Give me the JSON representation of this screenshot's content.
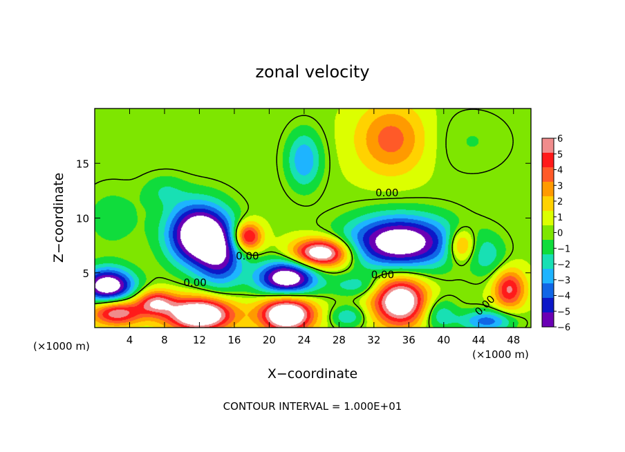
{
  "chart_data": {
    "type": "heatmap",
    "title": "zonal velocity",
    "xlabel": "X−coordinate",
    "ylabel": "Z−coordinate",
    "x_unit_left": "(×1000 m)",
    "x_unit_right": "(×1000 m)",
    "xlim": [
      0,
      50
    ],
    "ylim": [
      0,
      20
    ],
    "x_ticks": [
      4,
      8,
      12,
      16,
      20,
      24,
      28,
      32,
      36,
      40,
      44,
      48
    ],
    "y_ticks": [
      5,
      10,
      15
    ],
    "footer": "CONTOUR INTERVAL = 1.000E+01",
    "contour_labels": [
      "0.00",
      "0.00",
      "0.00",
      "0.00",
      "0.00"
    ],
    "colorbar": {
      "min": -6,
      "max": 6,
      "ticks": [
        "6",
        "5",
        "4",
        "3",
        "2",
        "1",
        "0",
        "−1",
        "−2",
        "−3",
        "−4",
        "−5",
        "−6"
      ],
      "colors": [
        "#f08c8c",
        "#ff1a1a",
        "#ff5a28",
        "#ff9a00",
        "#ffd200",
        "#dcff00",
        "#7ee600",
        "#10dc3c",
        "#18e0b4",
        "#1eb4ff",
        "#1066e6",
        "#0c18c8",
        "#6a00b4"
      ]
    },
    "background_value": 0.3,
    "features": [
      {
        "kind": "blob",
        "x": 12,
        "z": 8.5,
        "rx": 3.6,
        "rz": 2.8,
        "peak": -9
      },
      {
        "kind": "blob",
        "x": 35,
        "z": 7.8,
        "rx": 6.0,
        "rz": 2.4,
        "peak": -8
      },
      {
        "kind": "blob",
        "x": 22,
        "z": 4.5,
        "rx": 3.4,
        "rz": 1.6,
        "peak": -8
      },
      {
        "kind": "blob",
        "x": 1.5,
        "z": 3.8,
        "rx": 3.0,
        "rz": 1.6,
        "peak": -8
      },
      {
        "kind": "blob",
        "x": 12,
        "z": 1.2,
        "rx": 3.8,
        "rz": 1.5,
        "peak": 9
      },
      {
        "kind": "blob",
        "x": 22,
        "z": 1.2,
        "rx": 3.0,
        "rz": 1.6,
        "peak": 9
      },
      {
        "kind": "blob",
        "x": 35,
        "z": 2.4,
        "rx": 3.0,
        "rz": 2.2,
        "peak": 8
      },
      {
        "kind": "blob",
        "x": 26,
        "z": 6.8,
        "rx": 3.2,
        "rz": 1.3,
        "peak": 8
      },
      {
        "kind": "blob",
        "x": 17.5,
        "z": 8.3,
        "rx": 1.6,
        "rz": 1.3,
        "peak": 6
      },
      {
        "kind": "blob",
        "x": 2.5,
        "z": 1.4,
        "rx": 3.0,
        "rz": 1.2,
        "peak": 6
      },
      {
        "kind": "blob",
        "x": 34,
        "z": 17.2,
        "rx": 4.0,
        "rz": 3.2,
        "peak": 3.4
      },
      {
        "kind": "blob",
        "x": 24,
        "z": 15.3,
        "rx": 2.0,
        "rz": 2.6,
        "peak": -3.5
      },
      {
        "kind": "blob",
        "x": 14.5,
        "z": 6.0,
        "rx": 2.6,
        "rz": 2.6,
        "peak": -4
      },
      {
        "kind": "blob",
        "x": 2,
        "z": 10,
        "rx": 3.5,
        "rz": 3.0,
        "peak": -1.2
      },
      {
        "kind": "blob",
        "x": 8,
        "z": 12.5,
        "rx": 2.5,
        "rz": 1.5,
        "peak": -1.5
      },
      {
        "kind": "blob",
        "x": 42,
        "z": 7.5,
        "rx": 1.6,
        "rz": 1.5,
        "peak": 4
      },
      {
        "kind": "blob",
        "x": 45,
        "z": 6.5,
        "rx": 2.2,
        "rz": 2.0,
        "peak": -2.0
      },
      {
        "kind": "blob",
        "x": 47.5,
        "z": 3.5,
        "rx": 1.8,
        "rz": 1.8,
        "peak": 5
      },
      {
        "kind": "blob",
        "x": 45,
        "z": 0.6,
        "rx": 3.0,
        "rz": 1.0,
        "peak": -4
      },
      {
        "kind": "blob",
        "x": 39.5,
        "z": 1.2,
        "rx": 2.0,
        "rz": 1.5,
        "peak": -2.5
      },
      {
        "kind": "blob",
        "x": 29,
        "z": 1.0,
        "rx": 2.0,
        "rz": 1.0,
        "peak": -2.5
      },
      {
        "kind": "blob",
        "x": 7,
        "z": 2.3,
        "rx": 2.2,
        "rz": 1.1,
        "peak": 5
      },
      {
        "kind": "blob",
        "x": 30,
        "z": 3.8,
        "rx": 3.0,
        "rz": 1.0,
        "peak": -2.0
      },
      {
        "kind": "blob",
        "x": 43,
        "z": 17,
        "rx": 5.0,
        "rz": 3.0,
        "peak": -0.8
      }
    ]
  }
}
